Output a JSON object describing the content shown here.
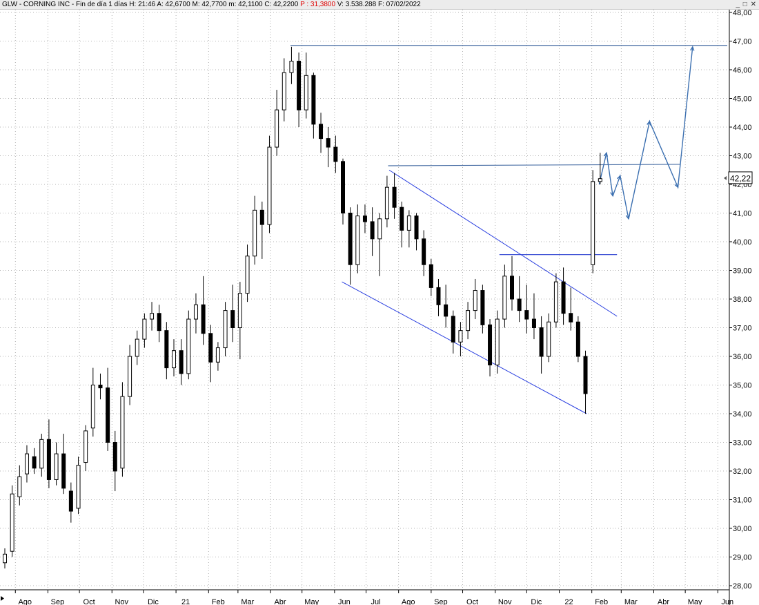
{
  "window": {
    "title_parts": [
      {
        "text": "GLW - CORNING INC - Fin de día 1 días  H: 21:46  A: 42,6700  M: 42,7700  m: 42,1100  C: 42,2200  "
      },
      {
        "text": "P : 31,3800",
        "class": "p-val"
      },
      {
        "text": "  V: 3.538.288  F: 07/02/2022"
      }
    ],
    "buttons": {
      "minimize": "_",
      "maximize": "□",
      "close": "✕"
    }
  },
  "chart_data": {
    "type": "candlestick",
    "symbol": "GLW",
    "name": "CORNING INC",
    "ylim": [
      28,
      48
    ],
    "y_ticks": [
      28,
      29,
      30,
      31,
      32,
      33,
      34,
      35,
      36,
      37,
      38,
      39,
      40,
      41,
      42,
      43,
      44,
      45,
      46,
      47,
      48
    ],
    "y_tick_labels": [
      "28,00",
      "29,00",
      "30,00",
      "31,00",
      "32,00",
      "33,00",
      "34,00",
      "35,00",
      "36,00",
      "37,00",
      "38,00",
      "39,00",
      "40,00",
      "41,00",
      "42,00",
      "43,00",
      "44,00",
      "45,00",
      "46,00",
      "47,00",
      "48,00"
    ],
    "x_range": [
      "2020-07-20",
      "2022-06-10"
    ],
    "x_ticks": [
      {
        "label": "Ago",
        "date": "2020-08-01"
      },
      {
        "label": "Sep",
        "date": "2020-09-01"
      },
      {
        "label": "Oct",
        "date": "2020-10-01"
      },
      {
        "label": "Nov",
        "date": "2020-11-01"
      },
      {
        "label": "Dic",
        "date": "2020-12-01"
      },
      {
        "label": "21",
        "date": "2021-01-01"
      },
      {
        "label": "Feb",
        "date": "2021-02-01"
      },
      {
        "label": "Mar",
        "date": "2021-03-01"
      },
      {
        "label": "Abr",
        "date": "2021-04-01"
      },
      {
        "label": "May",
        "date": "2021-05-01"
      },
      {
        "label": "Jun",
        "date": "2021-06-01"
      },
      {
        "label": "Jul",
        "date": "2021-07-01"
      },
      {
        "label": "Ago",
        "date": "2021-08-01"
      },
      {
        "label": "Sep",
        "date": "2021-09-01"
      },
      {
        "label": "Oct",
        "date": "2021-10-01"
      },
      {
        "label": "Nov",
        "date": "2021-11-01"
      },
      {
        "label": "Dic",
        "date": "2021-12-01"
      },
      {
        "label": "22",
        "date": "2022-01-01"
      },
      {
        "label": "Feb",
        "date": "2022-02-01"
      },
      {
        "label": "Mar",
        "date": "2022-03-01"
      },
      {
        "label": "Abr",
        "date": "2022-04-01"
      },
      {
        "label": "May",
        "date": "2022-05-01"
      },
      {
        "label": "Jun",
        "date": "2022-06-01"
      }
    ],
    "grid": true,
    "last_price_label": "42,22",
    "last_price": 42.22,
    "candles": [
      {
        "date": "2020-07-20",
        "o": 28.8,
        "h": 29.3,
        "l": 28.6,
        "c": 29.1
      },
      {
        "date": "2020-07-27",
        "o": 29.2,
        "h": 31.5,
        "l": 29.0,
        "c": 31.2
      },
      {
        "date": "2020-08-03",
        "o": 31.1,
        "h": 32.2,
        "l": 30.8,
        "c": 31.8
      },
      {
        "date": "2020-08-10",
        "o": 31.9,
        "h": 32.9,
        "l": 31.6,
        "c": 32.6
      },
      {
        "date": "2020-08-17",
        "o": 32.5,
        "h": 32.8,
        "l": 31.9,
        "c": 32.1
      },
      {
        "date": "2020-08-24",
        "o": 32.1,
        "h": 33.3,
        "l": 31.8,
        "c": 33.1
      },
      {
        "date": "2020-08-31",
        "o": 33.1,
        "h": 33.8,
        "l": 31.4,
        "c": 31.7
      },
      {
        "date": "2020-09-07",
        "o": 31.7,
        "h": 33.0,
        "l": 31.5,
        "c": 32.6
      },
      {
        "date": "2020-09-14",
        "o": 32.6,
        "h": 33.3,
        "l": 31.2,
        "c": 31.4
      },
      {
        "date": "2020-09-21",
        "o": 31.3,
        "h": 31.6,
        "l": 30.2,
        "c": 30.6
      },
      {
        "date": "2020-09-28",
        "o": 30.7,
        "h": 32.5,
        "l": 30.5,
        "c": 32.2
      },
      {
        "date": "2020-10-05",
        "o": 32.3,
        "h": 33.6,
        "l": 32.0,
        "c": 33.4
      },
      {
        "date": "2020-10-12",
        "o": 33.5,
        "h": 35.6,
        "l": 33.2,
        "c": 35.0
      },
      {
        "date": "2020-10-19",
        "o": 35.0,
        "h": 35.4,
        "l": 34.5,
        "c": 34.9
      },
      {
        "date": "2020-10-26",
        "o": 34.9,
        "h": 35.6,
        "l": 32.7,
        "c": 33.0
      },
      {
        "date": "2020-11-02",
        "o": 33.0,
        "h": 33.4,
        "l": 31.3,
        "c": 32.0
      },
      {
        "date": "2020-11-09",
        "o": 32.1,
        "h": 35.1,
        "l": 31.8,
        "c": 34.6
      },
      {
        "date": "2020-11-16",
        "o": 34.6,
        "h": 36.4,
        "l": 34.3,
        "c": 36.0
      },
      {
        "date": "2020-11-23",
        "o": 36.0,
        "h": 36.9,
        "l": 35.7,
        "c": 36.6
      },
      {
        "date": "2020-11-30",
        "o": 36.6,
        "h": 37.5,
        "l": 36.3,
        "c": 37.3
      },
      {
        "date": "2020-12-07",
        "o": 37.3,
        "h": 37.9,
        "l": 36.9,
        "c": 37.5
      },
      {
        "date": "2020-12-14",
        "o": 37.5,
        "h": 37.8,
        "l": 36.5,
        "c": 36.9
      },
      {
        "date": "2020-12-21",
        "o": 36.9,
        "h": 37.2,
        "l": 35.2,
        "c": 35.6
      },
      {
        "date": "2020-12-28",
        "o": 35.6,
        "h": 36.6,
        "l": 35.3,
        "c": 36.2
      },
      {
        "date": "2021-01-04",
        "o": 36.2,
        "h": 36.6,
        "l": 35.0,
        "c": 35.4
      },
      {
        "date": "2021-01-11",
        "o": 35.4,
        "h": 37.6,
        "l": 35.2,
        "c": 37.3
      },
      {
        "date": "2021-01-18",
        "o": 37.3,
        "h": 38.2,
        "l": 36.8,
        "c": 37.8
      },
      {
        "date": "2021-01-25",
        "o": 37.8,
        "h": 38.8,
        "l": 36.4,
        "c": 36.8
      },
      {
        "date": "2021-02-01",
        "o": 36.8,
        "h": 37.1,
        "l": 35.1,
        "c": 35.8
      },
      {
        "date": "2021-02-08",
        "o": 35.8,
        "h": 36.5,
        "l": 35.5,
        "c": 36.3
      },
      {
        "date": "2021-02-15",
        "o": 36.3,
        "h": 37.9,
        "l": 36.0,
        "c": 37.6
      },
      {
        "date": "2021-02-22",
        "o": 37.6,
        "h": 38.5,
        "l": 36.5,
        "c": 37.0
      },
      {
        "date": "2021-03-01",
        "o": 37.0,
        "h": 38.6,
        "l": 35.9,
        "c": 38.2
      },
      {
        "date": "2021-03-08",
        "o": 38.2,
        "h": 39.9,
        "l": 37.9,
        "c": 39.5
      },
      {
        "date": "2021-03-15",
        "o": 39.5,
        "h": 41.6,
        "l": 39.2,
        "c": 41.1
      },
      {
        "date": "2021-03-22",
        "o": 41.1,
        "h": 41.4,
        "l": 39.4,
        "c": 40.6
      },
      {
        "date": "2021-03-29",
        "o": 40.6,
        "h": 43.7,
        "l": 40.3,
        "c": 43.3
      },
      {
        "date": "2021-04-05",
        "o": 43.3,
        "h": 45.3,
        "l": 43.0,
        "c": 44.6
      },
      {
        "date": "2021-04-12",
        "o": 44.6,
        "h": 46.4,
        "l": 44.2,
        "c": 45.9
      },
      {
        "date": "2021-04-19",
        "o": 45.9,
        "h": 46.8,
        "l": 45.5,
        "c": 46.3
      },
      {
        "date": "2021-04-26",
        "o": 46.3,
        "h": 46.6,
        "l": 44.0,
        "c": 44.6
      },
      {
        "date": "2021-05-03",
        "o": 44.6,
        "h": 46.6,
        "l": 44.3,
        "c": 45.8
      },
      {
        "date": "2021-05-10",
        "o": 45.8,
        "h": 45.9,
        "l": 43.6,
        "c": 44.1
      },
      {
        "date": "2021-05-17",
        "o": 44.1,
        "h": 44.5,
        "l": 43.1,
        "c": 43.6
      },
      {
        "date": "2021-05-24",
        "o": 43.6,
        "h": 44.0,
        "l": 42.6,
        "c": 43.3
      },
      {
        "date": "2021-05-31",
        "o": 43.3,
        "h": 43.7,
        "l": 42.4,
        "c": 42.8
      },
      {
        "date": "2021-06-07",
        "o": 42.8,
        "h": 42.9,
        "l": 40.6,
        "c": 41.0
      },
      {
        "date": "2021-06-14",
        "o": 41.0,
        "h": 41.2,
        "l": 38.5,
        "c": 39.2
      },
      {
        "date": "2021-06-21",
        "o": 39.2,
        "h": 41.3,
        "l": 38.9,
        "c": 40.9
      },
      {
        "date": "2021-06-28",
        "o": 40.9,
        "h": 41.3,
        "l": 40.3,
        "c": 40.7
      },
      {
        "date": "2021-07-05",
        "o": 40.7,
        "h": 41.2,
        "l": 39.5,
        "c": 40.1
      },
      {
        "date": "2021-07-12",
        "o": 40.1,
        "h": 41.0,
        "l": 38.8,
        "c": 40.8
      },
      {
        "date": "2021-07-19",
        "o": 40.8,
        "h": 42.3,
        "l": 40.5,
        "c": 41.9
      },
      {
        "date": "2021-07-26",
        "o": 41.9,
        "h": 42.4,
        "l": 40.8,
        "c": 41.2
      },
      {
        "date": "2021-08-02",
        "o": 41.2,
        "h": 41.4,
        "l": 39.8,
        "c": 40.4
      },
      {
        "date": "2021-08-09",
        "o": 40.4,
        "h": 41.1,
        "l": 39.8,
        "c": 40.9
      },
      {
        "date": "2021-08-16",
        "o": 40.9,
        "h": 41.0,
        "l": 39.7,
        "c": 40.1
      },
      {
        "date": "2021-08-23",
        "o": 40.1,
        "h": 40.4,
        "l": 38.8,
        "c": 39.2
      },
      {
        "date": "2021-08-30",
        "o": 39.2,
        "h": 39.4,
        "l": 38.1,
        "c": 38.4
      },
      {
        "date": "2021-09-06",
        "o": 38.4,
        "h": 38.7,
        "l": 37.4,
        "c": 37.8
      },
      {
        "date": "2021-09-13",
        "o": 37.8,
        "h": 38.5,
        "l": 37.0,
        "c": 37.4
      },
      {
        "date": "2021-09-20",
        "o": 37.4,
        "h": 37.6,
        "l": 36.1,
        "c": 36.5
      },
      {
        "date": "2021-09-27",
        "o": 36.5,
        "h": 37.2,
        "l": 36.0,
        "c": 36.9
      },
      {
        "date": "2021-10-04",
        "o": 36.9,
        "h": 37.9,
        "l": 36.6,
        "c": 37.6
      },
      {
        "date": "2021-10-11",
        "o": 37.6,
        "h": 38.7,
        "l": 37.3,
        "c": 38.3
      },
      {
        "date": "2021-10-18",
        "o": 38.3,
        "h": 38.5,
        "l": 36.8,
        "c": 37.1
      },
      {
        "date": "2021-10-25",
        "o": 37.1,
        "h": 37.3,
        "l": 35.3,
        "c": 35.7
      },
      {
        "date": "2021-11-01",
        "o": 35.7,
        "h": 37.6,
        "l": 35.4,
        "c": 37.3
      },
      {
        "date": "2021-11-08",
        "o": 37.3,
        "h": 39.2,
        "l": 37.0,
        "c": 38.8
      },
      {
        "date": "2021-11-15",
        "o": 38.8,
        "h": 39.5,
        "l": 37.6,
        "c": 38.0
      },
      {
        "date": "2021-11-22",
        "o": 38.0,
        "h": 38.8,
        "l": 37.2,
        "c": 37.6
      },
      {
        "date": "2021-11-29",
        "o": 37.6,
        "h": 38.5,
        "l": 36.8,
        "c": 37.3
      },
      {
        "date": "2021-12-06",
        "o": 37.3,
        "h": 38.2,
        "l": 36.6,
        "c": 37.0
      },
      {
        "date": "2021-12-13",
        "o": 37.0,
        "h": 37.4,
        "l": 35.4,
        "c": 36.0
      },
      {
        "date": "2021-12-20",
        "o": 36.0,
        "h": 37.5,
        "l": 35.8,
        "c": 37.2
      },
      {
        "date": "2021-12-27",
        "o": 37.2,
        "h": 38.9,
        "l": 37.0,
        "c": 38.6
      },
      {
        "date": "2022-01-03",
        "o": 38.6,
        "h": 39.1,
        "l": 37.1,
        "c": 37.5
      },
      {
        "date": "2022-01-10",
        "o": 37.5,
        "h": 38.4,
        "l": 36.9,
        "c": 37.2
      },
      {
        "date": "2022-01-17",
        "o": 37.2,
        "h": 37.4,
        "l": 35.8,
        "c": 36.0
      },
      {
        "date": "2022-01-24",
        "o": 36.0,
        "h": 36.2,
        "l": 34.0,
        "c": 34.7
      },
      {
        "date": "2022-01-31",
        "o": 39.2,
        "h": 42.5,
        "l": 38.9,
        "c": 42.1
      },
      {
        "date": "2022-02-07",
        "o": 42.1,
        "h": 43.1,
        "l": 42.0,
        "c": 42.2
      }
    ],
    "drawings": {
      "resistance_top": {
        "from": [
          "2021-04-20",
          46.85
        ],
        "to": [
          "2022-06-10",
          46.85
        ]
      },
      "resistance_mid": {
        "from": [
          "2021-07-22",
          42.65
        ],
        "to": [
          "2022-04-26",
          42.7
        ]
      },
      "neckline": {
        "from": [
          "2021-11-05",
          39.55
        ],
        "to": [
          "2022-02-25",
          39.55
        ]
      },
      "channel_upper": {
        "from": [
          "2021-07-23",
          42.5
        ],
        "to": [
          "2022-02-25",
          37.4
        ]
      },
      "channel_lower": {
        "from": [
          "2021-06-08",
          38.6
        ],
        "to": [
          "2022-01-27",
          34.0
        ]
      },
      "projection": {
        "points": [
          [
            "2022-02-08",
            42.0
          ],
          [
            "2022-02-15",
            43.1
          ],
          [
            "2022-02-21",
            41.6
          ],
          [
            "2022-02-28",
            42.3
          ],
          [
            "2022-03-08",
            40.8
          ],
          [
            "2022-03-28",
            44.2
          ],
          [
            "2022-04-24",
            41.9
          ],
          [
            "2022-05-08",
            46.8
          ]
        ],
        "arrow_at": [
          1,
          2,
          3,
          4,
          5,
          6,
          7
        ]
      }
    }
  }
}
